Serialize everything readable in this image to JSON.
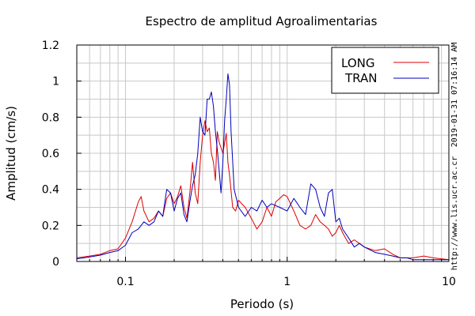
{
  "chart_data": {
    "type": "line",
    "title": "Espectro de amplitud Agroalimentarias",
    "xlabel": "Periodo (s)",
    "ylabel": "Amplitud (cm/s)",
    "xscale": "log",
    "xlim": [
      0.05,
      10
    ],
    "ylim": [
      0,
      1.2
    ],
    "x_ticks": [
      {
        "value": 0.1,
        "label": "0.1"
      },
      {
        "value": 1,
        "label": "1"
      },
      {
        "value": 10,
        "label": "10"
      }
    ],
    "y_ticks": [
      {
        "value": 0,
        "label": "0"
      },
      {
        "value": 0.2,
        "label": "0.2"
      },
      {
        "value": 0.4,
        "label": "0.4"
      },
      {
        "value": 0.6,
        "label": "0.6"
      },
      {
        "value": 0.8,
        "label": "0.8"
      },
      {
        "value": 1,
        "label": "1"
      },
      {
        "value": 1.2,
        "label": "1.2"
      }
    ],
    "grid": true,
    "legend": "top-right",
    "series": [
      {
        "name": "LONG",
        "color": "#dd0000",
        "x": [
          0.05,
          0.06,
          0.07,
          0.08,
          0.09,
          0.1,
          0.11,
          0.12,
          0.125,
          0.13,
          0.14,
          0.15,
          0.16,
          0.17,
          0.18,
          0.19,
          0.2,
          0.21,
          0.22,
          0.23,
          0.24,
          0.25,
          0.26,
          0.27,
          0.28,
          0.29,
          0.3,
          0.31,
          0.32,
          0.33,
          0.34,
          0.35,
          0.36,
          0.37,
          0.38,
          0.4,
          0.42,
          0.43,
          0.44,
          0.46,
          0.48,
          0.5,
          0.55,
          0.6,
          0.65,
          0.7,
          0.75,
          0.8,
          0.85,
          0.9,
          0.95,
          1.0,
          1.1,
          1.2,
          1.3,
          1.4,
          1.5,
          1.6,
          1.7,
          1.8,
          1.9,
          2.0,
          2.1,
          2.2,
          2.4,
          2.6,
          2.8,
          3.0,
          3.5,
          4.0,
          4.5,
          5.0,
          6.0,
          7.0,
          8.0,
          9.0,
          10.0
        ],
        "y": [
          0.02,
          0.03,
          0.04,
          0.06,
          0.07,
          0.13,
          0.22,
          0.33,
          0.36,
          0.28,
          0.22,
          0.24,
          0.28,
          0.25,
          0.35,
          0.38,
          0.32,
          0.36,
          0.42,
          0.3,
          0.24,
          0.38,
          0.55,
          0.38,
          0.32,
          0.55,
          0.7,
          0.78,
          0.72,
          0.74,
          0.6,
          0.55,
          0.45,
          0.72,
          0.66,
          0.6,
          0.71,
          0.55,
          0.48,
          0.3,
          0.28,
          0.34,
          0.3,
          0.24,
          0.18,
          0.22,
          0.3,
          0.25,
          0.33,
          0.35,
          0.37,
          0.36,
          0.28,
          0.2,
          0.18,
          0.2,
          0.26,
          0.22,
          0.2,
          0.18,
          0.14,
          0.16,
          0.2,
          0.16,
          0.1,
          0.12,
          0.1,
          0.08,
          0.06,
          0.07,
          0.04,
          0.02,
          0.02,
          0.03,
          0.02,
          0.015,
          0.01
        ]
      },
      {
        "name": "TRAN",
        "color": "#0000bb",
        "x": [
          0.05,
          0.06,
          0.07,
          0.08,
          0.09,
          0.1,
          0.11,
          0.12,
          0.13,
          0.14,
          0.15,
          0.16,
          0.17,
          0.18,
          0.19,
          0.2,
          0.21,
          0.22,
          0.23,
          0.24,
          0.25,
          0.26,
          0.27,
          0.28,
          0.29,
          0.3,
          0.31,
          0.32,
          0.33,
          0.34,
          0.35,
          0.36,
          0.37,
          0.38,
          0.39,
          0.4,
          0.41,
          0.42,
          0.43,
          0.44,
          0.45,
          0.47,
          0.5,
          0.55,
          0.6,
          0.65,
          0.7,
          0.75,
          0.8,
          0.9,
          1.0,
          1.1,
          1.2,
          1.3,
          1.4,
          1.5,
          1.6,
          1.7,
          1.8,
          1.9,
          2.0,
          2.1,
          2.2,
          2.4,
          2.6,
          2.8,
          3.0,
          3.5,
          4.0,
          4.5,
          5.0,
          5.5,
          6.0,
          7.0,
          8.0,
          9.0,
          10.0
        ],
        "y": [
          0.015,
          0.025,
          0.035,
          0.05,
          0.06,
          0.09,
          0.16,
          0.18,
          0.22,
          0.2,
          0.22,
          0.28,
          0.25,
          0.4,
          0.38,
          0.28,
          0.35,
          0.38,
          0.26,
          0.22,
          0.33,
          0.42,
          0.48,
          0.6,
          0.8,
          0.72,
          0.7,
          0.9,
          0.9,
          0.94,
          0.86,
          0.72,
          0.62,
          0.5,
          0.38,
          0.55,
          0.78,
          0.9,
          1.04,
          0.98,
          0.72,
          0.4,
          0.3,
          0.25,
          0.3,
          0.28,
          0.34,
          0.3,
          0.32,
          0.3,
          0.28,
          0.35,
          0.3,
          0.26,
          0.43,
          0.4,
          0.3,
          0.25,
          0.38,
          0.4,
          0.22,
          0.24,
          0.18,
          0.13,
          0.08,
          0.1,
          0.08,
          0.05,
          0.04,
          0.03,
          0.02,
          0.02,
          0.01,
          0.01,
          0.01,
          0.01,
          0.01
        ]
      }
    ]
  },
  "side_texts": {
    "timestamp": "2019-01-31 07:16:14 AM",
    "url": "http://www.lis.ucr.ac.cr"
  }
}
